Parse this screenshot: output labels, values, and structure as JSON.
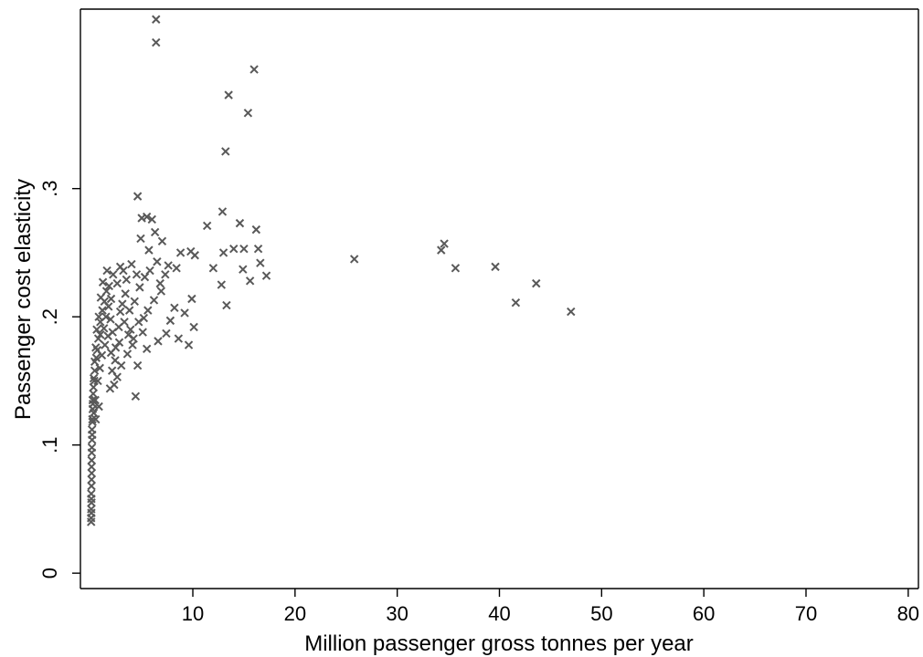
{
  "chart_data": {
    "type": "scatter",
    "xlabel": "Million passenger gross tonnes per year",
    "ylabel": "Passenger cost elasticity",
    "xlim": [
      -1,
      81
    ],
    "ylim": [
      -0.012,
      0.44
    ],
    "xticks": [
      10,
      20,
      30,
      40,
      50,
      60,
      70,
      80
    ],
    "xtick_labels": [
      "10",
      "20",
      "30",
      "40",
      "50",
      "60",
      "70",
      "80"
    ],
    "yticks": [
      0,
      0.1,
      0.2,
      0.3
    ],
    "ytick_labels": [
      "0",
      ".1",
      ".2",
      ".3"
    ],
    "marker": "x",
    "marker_color": "#595959",
    "grid": false,
    "legend": "none",
    "points": [
      [
        6.4,
        0.432
      ],
      [
        6.4,
        0.414
      ],
      [
        16.0,
        0.393
      ],
      [
        13.5,
        0.373
      ],
      [
        15.4,
        0.359
      ],
      [
        13.2,
        0.329
      ],
      [
        4.6,
        0.294
      ],
      [
        12.9,
        0.282
      ],
      [
        5.0,
        0.277
      ],
      [
        5.5,
        0.278
      ],
      [
        6.0,
        0.276
      ],
      [
        14.6,
        0.273
      ],
      [
        16.2,
        0.268
      ],
      [
        11.4,
        0.271
      ],
      [
        4.9,
        0.261
      ],
      [
        7.0,
        0.259
      ],
      [
        9.8,
        0.251
      ],
      [
        15.0,
        0.253
      ],
      [
        16.4,
        0.253
      ],
      [
        14.0,
        0.253
      ],
      [
        13.0,
        0.25
      ],
      [
        8.8,
        0.25
      ],
      [
        10.2,
        0.248
      ],
      [
        17.2,
        0.232
      ],
      [
        15.6,
        0.228
      ],
      [
        12.8,
        0.225
      ],
      [
        13.3,
        0.209
      ],
      [
        14.9,
        0.237
      ],
      [
        16.6,
        0.242
      ],
      [
        12.0,
        0.238
      ],
      [
        25.8,
        0.245
      ],
      [
        34.6,
        0.257
      ],
      [
        34.3,
        0.252
      ],
      [
        35.7,
        0.238
      ],
      [
        39.6,
        0.239
      ],
      [
        43.6,
        0.226
      ],
      [
        41.6,
        0.211
      ],
      [
        47.0,
        0.204
      ],
      [
        4.4,
        0.138
      ],
      [
        4.6,
        0.162
      ],
      [
        5.5,
        0.175
      ],
      [
        6.6,
        0.181
      ],
      [
        7.4,
        0.187
      ],
      [
        8.6,
        0.183
      ],
      [
        9.6,
        0.178
      ],
      [
        10.1,
        0.192
      ],
      [
        9.9,
        0.214
      ],
      [
        9.2,
        0.203
      ],
      [
        7.8,
        0.197
      ],
      [
        6.9,
        0.22
      ],
      [
        5.8,
        0.236
      ],
      [
        6.5,
        0.243
      ],
      [
        7.3,
        0.233
      ],
      [
        8.2,
        0.207
      ],
      [
        3.6,
        0.171
      ],
      [
        3.0,
        0.162
      ],
      [
        2.6,
        0.153
      ],
      [
        2.3,
        0.147
      ],
      [
        1.9,
        0.144
      ],
      [
        2.1,
        0.158
      ],
      [
        2.8,
        0.18
      ],
      [
        3.3,
        0.196
      ],
      [
        3.8,
        0.205
      ],
      [
        4.3,
        0.212
      ],
      [
        4.8,
        0.223
      ],
      [
        5.3,
        0.231
      ],
      [
        3.5,
        0.229
      ],
      [
        2.9,
        0.239
      ],
      [
        2.2,
        0.233
      ],
      [
        1.6,
        0.236
      ],
      [
        1.2,
        0.227
      ],
      [
        1.0,
        0.215
      ],
      [
        0.8,
        0.2
      ],
      [
        0.6,
        0.19
      ],
      [
        0.5,
        0.176
      ],
      [
        0.4,
        0.165
      ],
      [
        0.3,
        0.152
      ],
      [
        0.25,
        0.14
      ],
      [
        0.2,
        0.128
      ],
      [
        0.18,
        0.118
      ],
      [
        0.15,
        0.108
      ],
      [
        0.12,
        0.098
      ],
      [
        0.1,
        0.088
      ],
      [
        0.1,
        0.078
      ],
      [
        0.08,
        0.068
      ],
      [
        0.07,
        0.058
      ],
      [
        0.06,
        0.05
      ],
      [
        0.05,
        0.043
      ],
      [
        0.05,
        0.04
      ],
      [
        0.06,
        0.062
      ],
      [
        0.09,
        0.083
      ],
      [
        0.13,
        0.112
      ],
      [
        0.2,
        0.135
      ],
      [
        0.35,
        0.15
      ],
      [
        0.55,
        0.168
      ],
      [
        0.75,
        0.183
      ],
      [
        0.95,
        0.196
      ],
      [
        1.15,
        0.205
      ],
      [
        1.35,
        0.212
      ],
      [
        1.55,
        0.22
      ],
      [
        1.75,
        0.208
      ],
      [
        1.95,
        0.198
      ],
      [
        2.15,
        0.188
      ],
      [
        2.45,
        0.176
      ],
      [
        2.75,
        0.192
      ],
      [
        3.1,
        0.21
      ],
      [
        3.4,
        0.218
      ],
      [
        3.9,
        0.19
      ],
      [
        4.2,
        0.183
      ],
      [
        4.7,
        0.196
      ],
      [
        5.1,
        0.188
      ],
      [
        5.6,
        0.205
      ],
      [
        6.2,
        0.213
      ],
      [
        6.8,
        0.226
      ],
      [
        7.6,
        0.24
      ],
      [
        8.4,
        0.238
      ],
      [
        1.4,
        0.178
      ],
      [
        1.7,
        0.185
      ],
      [
        2.0,
        0.172
      ],
      [
        2.4,
        0.166
      ],
      [
        0.9,
        0.16
      ],
      [
        1.1,
        0.17
      ],
      [
        0.7,
        0.15
      ],
      [
        0.45,
        0.135
      ],
      [
        0.3,
        0.125
      ],
      [
        0.5,
        0.12
      ],
      [
        0.8,
        0.13
      ],
      [
        1.3,
        0.191
      ],
      [
        1.8,
        0.224
      ],
      [
        2.6,
        0.226
      ],
      [
        3.2,
        0.236
      ],
      [
        4.0,
        0.241
      ],
      [
        4.5,
        0.233
      ],
      [
        5.7,
        0.252
      ],
      [
        6.3,
        0.266
      ],
      [
        5.2,
        0.199
      ],
      [
        4.1,
        0.178
      ],
      [
        3.7,
        0.186
      ],
      [
        2.9,
        0.204
      ],
      [
        2.0,
        0.214
      ],
      [
        1.5,
        0.2
      ],
      [
        0.95,
        0.186
      ],
      [
        0.65,
        0.174
      ],
      [
        0.4,
        0.158
      ],
      [
        0.28,
        0.145
      ],
      [
        0.22,
        0.132
      ],
      [
        0.17,
        0.12
      ],
      [
        0.14,
        0.104
      ],
      [
        0.11,
        0.094
      ],
      [
        0.09,
        0.073
      ],
      [
        0.08,
        0.055
      ],
      [
        0.07,
        0.047
      ]
    ]
  }
}
